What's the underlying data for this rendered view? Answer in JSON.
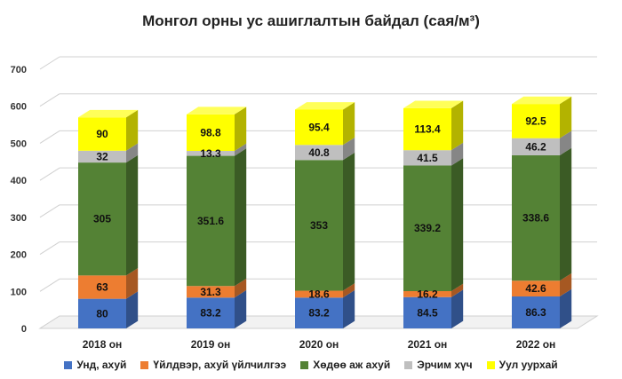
{
  "chart_data": {
    "type": "bar",
    "stacked": true,
    "three_d": true,
    "title": "Монгол орны ус ашиглалтын байдал (сая/м³)",
    "categories": [
      "2018 он",
      "2019 он",
      "2020 он",
      "2021 он",
      "2022 он"
    ],
    "ylim": [
      0,
      700
    ],
    "yticks": [
      0,
      100,
      200,
      300,
      400,
      500,
      600,
      700
    ],
    "grid": true,
    "legend_position": "bottom",
    "series": [
      {
        "name": "Унд, ахуй",
        "color": "#4472c4",
        "values": [
          80,
          83.2,
          83.2,
          84.5,
          86.3
        ]
      },
      {
        "name": "Үйлдвэр, ахуй үйлчилгээ",
        "color": "#ed7d31",
        "values": [
          63,
          31.3,
          18.6,
          16.2,
          42.6
        ]
      },
      {
        "name": "Хөдөө аж ахуй",
        "color": "#548235",
        "values": [
          305,
          351.6,
          353,
          339.2,
          338.6
        ]
      },
      {
        "name": "Эрчим хүч",
        "color": "#bfbfbf",
        "values": [
          32,
          13.3,
          40.8,
          41.5,
          46.2
        ]
      },
      {
        "name": "Уул уурхай",
        "color": "#ffff00",
        "values": [
          90,
          98.8,
          95.4,
          113.4,
          92.5
        ]
      }
    ]
  }
}
